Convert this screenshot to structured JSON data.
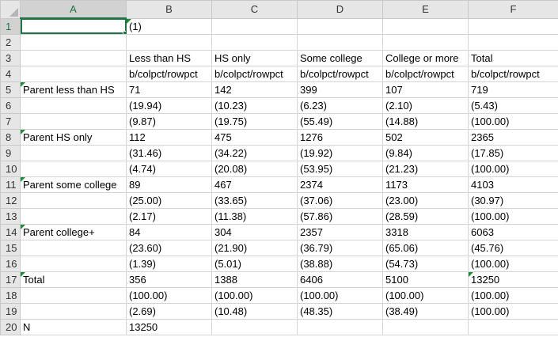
{
  "columns": [
    "A",
    "B",
    "C",
    "D",
    "E",
    "F"
  ],
  "rows": [
    {
      "num": "1",
      "cells": [
        "",
        "(1)",
        "",
        "",
        "",
        ""
      ],
      "flags": [
        1
      ]
    },
    {
      "num": "2",
      "cells": [
        "",
        "",
        "",
        "",
        "",
        ""
      ],
      "flags": []
    },
    {
      "num": "3",
      "cells": [
        "",
        "Less than HS",
        "HS only",
        "Some college",
        "College or more",
        "Total"
      ],
      "flags": []
    },
    {
      "num": "4",
      "cells": [
        "",
        "b/colpct/rowpct",
        "b/colpct/rowpct",
        "b/colpct/rowpct",
        "b/colpct/rowpct",
        "b/colpct/rowpct"
      ],
      "flags": []
    },
    {
      "num": "5",
      "cells": [
        "Parent less than HS",
        "71",
        "142",
        "399",
        "107",
        "719"
      ],
      "flags": [
        0
      ]
    },
    {
      "num": "6",
      "cells": [
        "",
        "(19.94)",
        "(10.23)",
        "(6.23)",
        "(2.10)",
        "(5.43)"
      ],
      "flags": []
    },
    {
      "num": "7",
      "cells": [
        "",
        "(9.87)",
        "(19.75)",
        "(55.49)",
        "(14.88)",
        "(100.00)"
      ],
      "flags": []
    },
    {
      "num": "8",
      "cells": [
        "Parent HS only",
        "112",
        "475",
        "1276",
        "502",
        "2365"
      ],
      "flags": [
        0
      ]
    },
    {
      "num": "9",
      "cells": [
        "",
        "(31.46)",
        "(34.22)",
        "(19.92)",
        "(9.84)",
        "(17.85)"
      ],
      "flags": []
    },
    {
      "num": "10",
      "cells": [
        "",
        "(4.74)",
        "(20.08)",
        "(53.95)",
        "(21.23)",
        "(100.00)"
      ],
      "flags": []
    },
    {
      "num": "11",
      "cells": [
        "Parent some college",
        "89",
        "467",
        "2374",
        "1173",
        "4103"
      ],
      "flags": [
        0
      ]
    },
    {
      "num": "12",
      "cells": [
        "",
        "(25.00)",
        "(33.65)",
        "(37.06)",
        "(23.00)",
        "(30.97)"
      ],
      "flags": []
    },
    {
      "num": "13",
      "cells": [
        "",
        "(2.17)",
        "(11.38)",
        "(57.86)",
        "(28.59)",
        "(100.00)"
      ],
      "flags": []
    },
    {
      "num": "14",
      "cells": [
        "Parent college+",
        "84",
        "304",
        "2357",
        "3318",
        "6063"
      ],
      "flags": [
        0
      ]
    },
    {
      "num": "15",
      "cells": [
        "",
        "(23.60)",
        "(21.90)",
        "(36.79)",
        "(65.06)",
        "(45.76)"
      ],
      "flags": []
    },
    {
      "num": "16",
      "cells": [
        "",
        "(1.39)",
        "(5.01)",
        "(38.88)",
        "(54.73)",
        "(100.00)"
      ],
      "flags": []
    },
    {
      "num": "17",
      "cells": [
        "Total",
        "356",
        "1388",
        "6406",
        "5100",
        "13250"
      ],
      "flags": [
        0,
        5
      ]
    },
    {
      "num": "18",
      "cells": [
        "",
        "(100.00)",
        "(100.00)",
        "(100.00)",
        "(100.00)",
        "(100.00)"
      ],
      "flags": []
    },
    {
      "num": "19",
      "cells": [
        "",
        "(2.69)",
        "(10.48)",
        "(48.35)",
        "(38.49)",
        "(100.00)"
      ],
      "flags": []
    },
    {
      "num": "20",
      "cells": [
        "N",
        "13250",
        "",
        "",
        "",
        ""
      ],
      "flags": []
    }
  ],
  "selection": {
    "row": 0,
    "col": 0
  },
  "colors": {
    "accent": "#217346",
    "flag": "#1e8a3a",
    "gridline": "#d4d4d4",
    "header_bg": "#e6e6e6"
  }
}
